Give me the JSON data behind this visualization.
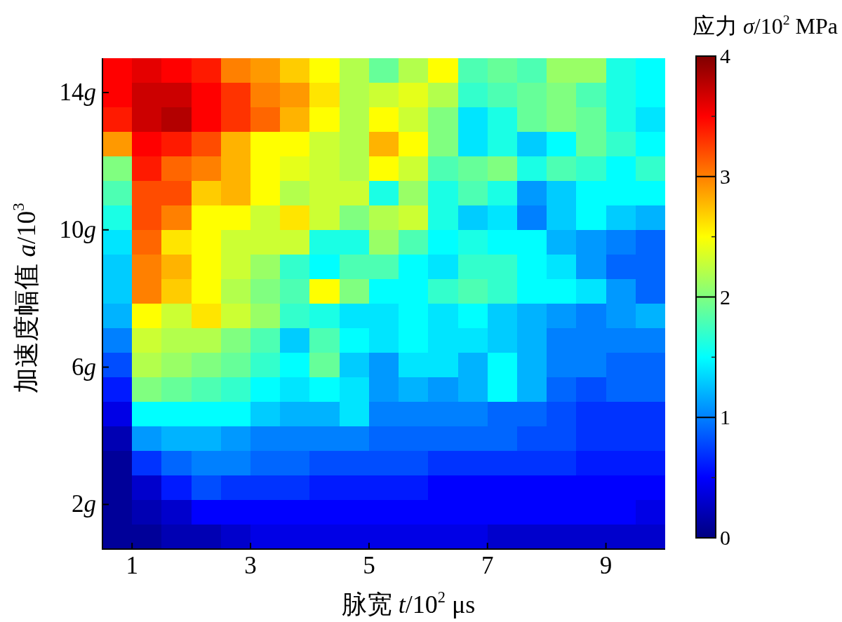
{
  "chart_data": {
    "type": "heatmap",
    "xlabel": "脉宽 *t*/10$^{2}$ μs",
    "ylabel": "加速度幅值 *a*/10$^{3}$",
    "clabel": "应力 *σ*/10$^{2}$ MPa",
    "x": [
      0.75,
      1.25,
      1.75,
      2.25,
      2.75,
      3.25,
      3.75,
      4.25,
      4.75,
      5.25,
      5.75,
      6.25,
      6.75,
      7.25,
      7.75,
      8.25,
      8.75,
      9.25,
      9.75
    ],
    "xlim": [
      0.5,
      10
    ],
    "ylim": [
      0.7,
      15
    ],
    "xticks": [
      1,
      3,
      5,
      7,
      9
    ],
    "yticks": [
      {
        "value": 2,
        "label": "2g"
      },
      {
        "value": 6,
        "label": "6g"
      },
      {
        "value": 10,
        "label": "10g"
      },
      {
        "value": 14,
        "label": "14g"
      }
    ],
    "clim": [
      0,
      4
    ],
    "cticks": [
      0,
      {
        "value": 0.5,
        "label": null
      },
      1,
      {
        "value": 1.5,
        "label": null
      },
      2,
      {
        "value": 2.5,
        "label": null
      },
      3,
      {
        "value": 3.5,
        "label": null
      },
      4
    ],
    "cells": [
      [
        3.5,
        3.6,
        3.5,
        3.4,
        3.0,
        2.9,
        2.7,
        2.5,
        2.2,
        1.9,
        2.2,
        2.5,
        1.8,
        1.9,
        1.8,
        2.1,
        2.1,
        1.6,
        1.5
      ],
      [
        3.5,
        3.7,
        3.7,
        3.5,
        3.3,
        3.0,
        2.9,
        2.6,
        2.2,
        2.3,
        2.4,
        2.2,
        1.7,
        1.8,
        1.9,
        2.0,
        1.8,
        1.6,
        1.5
      ],
      [
        3.4,
        3.7,
        3.8,
        3.5,
        3.3,
        3.1,
        2.8,
        2.5,
        2.2,
        2.5,
        2.3,
        2.0,
        1.4,
        1.6,
        1.9,
        2.0,
        1.9,
        1.6,
        1.4
      ],
      [
        2.9,
        3.5,
        3.4,
        3.2,
        2.8,
        2.5,
        2.5,
        2.3,
        2.2,
        2.8,
        2.5,
        2.0,
        1.4,
        1.6,
        1.3,
        1.5,
        1.9,
        1.7,
        1.5
      ],
      [
        2.0,
        3.4,
        3.1,
        3.0,
        2.8,
        2.5,
        2.4,
        2.3,
        2.2,
        2.5,
        2.3,
        1.8,
        1.9,
        2.0,
        1.6,
        1.8,
        1.7,
        1.5,
        1.7
      ],
      [
        1.8,
        3.2,
        3.2,
        2.7,
        2.8,
        2.5,
        2.2,
        2.3,
        2.3,
        1.6,
        2.1,
        1.6,
        1.8,
        1.6,
        1.1,
        1.3,
        1.5,
        1.5,
        1.5
      ],
      [
        1.6,
        3.2,
        3.0,
        2.5,
        2.5,
        2.3,
        2.6,
        2.3,
        2.0,
        2.2,
        2.3,
        1.6,
        1.3,
        1.4,
        1.0,
        1.3,
        1.5,
        1.3,
        1.2
      ],
      [
        1.4,
        3.1,
        2.6,
        2.5,
        2.3,
        2.3,
        2.3,
        1.6,
        1.6,
        2.1,
        1.8,
        1.5,
        1.6,
        1.5,
        1.5,
        1.2,
        1.1,
        1.0,
        0.9
      ],
      [
        1.3,
        3.0,
        2.8,
        2.5,
        2.3,
        2.1,
        1.7,
        1.5,
        1.8,
        1.8,
        1.5,
        1.4,
        1.7,
        1.7,
        1.5,
        1.4,
        1.1,
        0.9,
        0.9
      ],
      [
        1.3,
        3.0,
        2.7,
        2.5,
        2.2,
        2.0,
        1.8,
        2.5,
        2.0,
        1.5,
        1.5,
        1.7,
        1.8,
        1.7,
        1.5,
        1.5,
        1.4,
        1.1,
        0.9
      ],
      [
        1.2,
        2.5,
        2.3,
        2.6,
        2.3,
        2.1,
        1.7,
        1.6,
        1.4,
        1.4,
        1.5,
        1.4,
        1.5,
        1.3,
        1.2,
        1.1,
        1.0,
        1.1,
        1.2
      ],
      [
        1.0,
        2.3,
        2.2,
        2.2,
        2.0,
        1.8,
        1.3,
        1.8,
        1.5,
        1.4,
        1.5,
        1.4,
        1.4,
        1.3,
        1.2,
        1.0,
        1.0,
        1.0,
        1.0
      ],
      [
        0.8,
        2.2,
        2.1,
        2.0,
        1.9,
        1.7,
        1.5,
        1.9,
        1.3,
        1.1,
        1.4,
        1.4,
        1.2,
        1.5,
        1.2,
        1.0,
        1.0,
        0.9,
        0.9
      ],
      [
        0.6,
        2.0,
        1.9,
        1.8,
        1.7,
        1.5,
        1.4,
        1.5,
        1.4,
        1.1,
        1.2,
        1.1,
        1.2,
        1.5,
        1.2,
        0.9,
        0.8,
        0.9,
        0.9
      ],
      [
        0.4,
        1.5,
        1.5,
        1.5,
        1.5,
        1.3,
        1.2,
        1.2,
        1.4,
        1.0,
        1.0,
        1.0,
        1.0,
        0.9,
        0.9,
        0.8,
        0.7,
        0.7,
        0.7
      ],
      [
        0.2,
        1.1,
        1.2,
        1.2,
        1.1,
        1.0,
        1.0,
        1.0,
        1.0,
        0.9,
        0.9,
        0.9,
        0.9,
        0.9,
        0.8,
        0.8,
        0.7,
        0.7,
        0.7
      ],
      [
        0.1,
        0.7,
        0.9,
        1.0,
        1.0,
        0.9,
        0.9,
        0.8,
        0.8,
        0.8,
        0.8,
        0.7,
        0.7,
        0.7,
        0.7,
        0.7,
        0.6,
        0.6,
        0.6
      ],
      [
        0.1,
        0.3,
        0.6,
        0.8,
        0.7,
        0.7,
        0.7,
        0.6,
        0.6,
        0.6,
        0.6,
        0.5,
        0.5,
        0.5,
        0.5,
        0.5,
        0.5,
        0.5,
        0.5
      ],
      [
        0.1,
        0.2,
        0.3,
        0.5,
        0.5,
        0.5,
        0.5,
        0.5,
        0.5,
        0.5,
        0.5,
        0.5,
        0.5,
        0.5,
        0.5,
        0.5,
        0.5,
        0.5,
        0.4
      ],
      [
        0.1,
        0.1,
        0.2,
        0.2,
        0.3,
        0.4,
        0.4,
        0.4,
        0.4,
        0.4,
        0.4,
        0.4,
        0.4,
        0.3,
        0.3,
        0.3,
        0.3,
        0.3,
        0.3
      ]
    ]
  }
}
